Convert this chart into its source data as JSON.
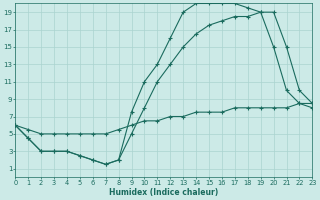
{
  "bg_color": "#cceae7",
  "line_color": "#1a6b5e",
  "grid_color": "#aad4cf",
  "xlabel": "Humidex (Indice chaleur)",
  "xlim": [
    0,
    23
  ],
  "ylim": [
    0,
    20
  ],
  "xticks": [
    0,
    1,
    2,
    3,
    4,
    5,
    6,
    7,
    8,
    9,
    10,
    11,
    12,
    13,
    14,
    15,
    16,
    17,
    18,
    19,
    20,
    21,
    22,
    23
  ],
  "yticks": [
    1,
    3,
    5,
    7,
    9,
    11,
    13,
    15,
    17,
    19
  ],
  "line1_x": [
    0,
    1,
    2,
    3,
    4,
    5,
    6,
    7,
    8,
    9,
    10,
    11,
    12,
    13,
    14,
    15,
    16,
    17,
    18,
    19,
    20,
    21,
    22,
    23
  ],
  "line1_y": [
    6,
    4.5,
    3,
    3,
    3,
    2.5,
    2,
    1.5,
    2,
    7.5,
    11,
    13,
    16,
    19,
    20,
    20,
    20,
    20,
    19.5,
    19,
    15,
    10,
    8.5,
    8
  ],
  "line2_x": [
    0,
    1,
    2,
    3,
    4,
    5,
    6,
    7,
    8,
    9,
    10,
    11,
    12,
    13,
    14,
    15,
    16,
    17,
    18,
    19,
    20,
    21,
    22,
    23
  ],
  "line2_y": [
    6,
    4.5,
    3,
    3,
    3,
    2.5,
    2,
    1.5,
    2,
    5,
    8,
    11,
    13,
    15,
    16.5,
    17.5,
    18,
    18.5,
    18.5,
    19,
    19,
    15,
    10,
    8.5
  ],
  "line3_x": [
    0,
    1,
    2,
    3,
    4,
    5,
    6,
    7,
    8,
    9,
    10,
    11,
    12,
    13,
    14,
    15,
    16,
    17,
    18,
    19,
    20,
    21,
    22,
    23
  ],
  "line3_y": [
    6,
    5.5,
    5,
    5,
    5,
    5,
    5,
    5,
    5.5,
    6,
    6.5,
    6.5,
    7,
    7,
    7.5,
    7.5,
    7.5,
    8,
    8,
    8,
    8,
    8,
    8.5,
    8.5
  ]
}
